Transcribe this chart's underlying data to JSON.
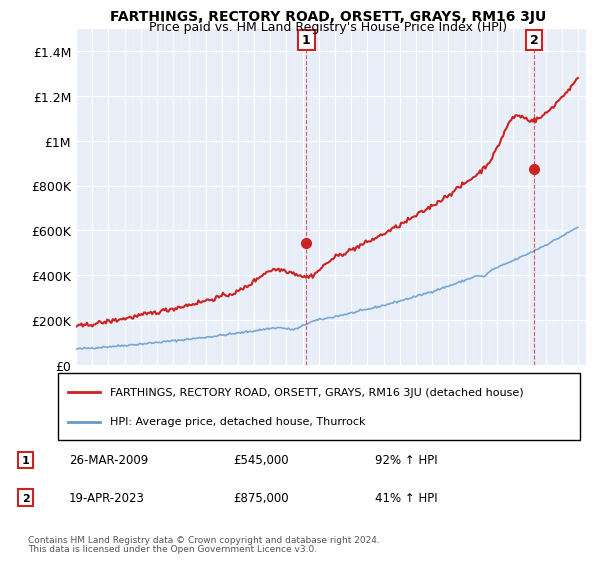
{
  "title": "FARTHINGS, RECTORY ROAD, ORSETT, GRAYS, RM16 3JU",
  "subtitle": "Price paid vs. HM Land Registry's House Price Index (HPI)",
  "legend_line1": "FARTHINGS, RECTORY ROAD, ORSETT, GRAYS, RM16 3JU (detached house)",
  "legend_line2": "HPI: Average price, detached house, Thurrock",
  "footnote1": "Contains HM Land Registry data © Crown copyright and database right 2024.",
  "footnote2": "This data is licensed under the Open Government Licence v3.0.",
  "annotation1_label": "1",
  "annotation1_date": "26-MAR-2009",
  "annotation1_price": "£545,000",
  "annotation1_hpi": "92% ↑ HPI",
  "annotation2_label": "2",
  "annotation2_date": "19-APR-2023",
  "annotation2_price": "£875,000",
  "annotation2_hpi": "41% ↑ HPI",
  "hpi_color": "#6699cc",
  "price_color": "#cc2222",
  "marker_color": "#cc2222",
  "annotation_box_color": "#cc2222",
  "background_shading": "#e8eef8",
  "ylim": [
    0,
    1500000
  ],
  "yticks": [
    0,
    200000,
    400000,
    600000,
    800000,
    1000000,
    1200000,
    1400000
  ],
  "ytick_labels": [
    "£0",
    "£200K",
    "£400K",
    "£600K",
    "£800K",
    "£1M",
    "£1.2M",
    "£1.4M"
  ],
  "x_start_year": 1995,
  "x_end_year": 2026
}
